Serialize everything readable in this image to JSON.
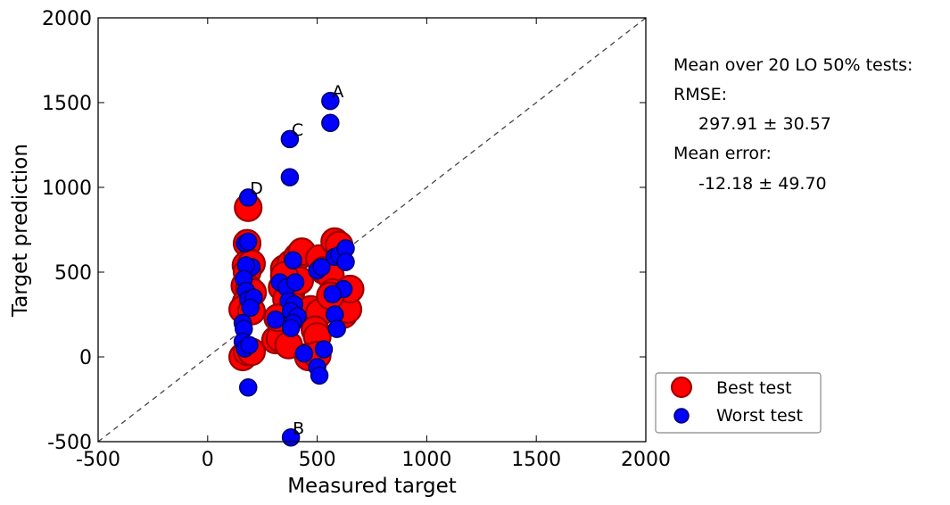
{
  "chart_data": {
    "type": "scatter",
    "xlabel": "Measured target",
    "ylabel": "Target prediction",
    "xlim": [
      -500,
      2000
    ],
    "ylim": [
      -500,
      2000
    ],
    "xticks": [
      -500,
      0,
      500,
      1000,
      1500,
      2000
    ],
    "yticks": [
      -500,
      0,
      500,
      1000,
      1500,
      2000
    ],
    "xtick_labels": [
      "-500",
      "0",
      "500",
      "1000",
      "1500",
      "2000"
    ],
    "ytick_labels": [
      "-500",
      "0",
      "500",
      "1000",
      "1500",
      "2000"
    ],
    "reference_line": "y = x (dashed)",
    "grid": false,
    "legend_position": "lower-right outside",
    "series": [
      {
        "name": "Best test",
        "color": "#ff0000",
        "edge_color": "#990000",
        "marker": "large circle",
        "points": [
          [
            185,
            880
          ],
          [
            180,
            670
          ],
          [
            190,
            560
          ],
          [
            175,
            540
          ],
          [
            200,
            550
          ],
          [
            180,
            500
          ],
          [
            170,
            420
          ],
          [
            190,
            400
          ],
          [
            205,
            380
          ],
          [
            175,
            320
          ],
          [
            160,
            280
          ],
          [
            200,
            270
          ],
          [
            160,
            0
          ],
          [
            180,
            30
          ],
          [
            200,
            30
          ],
          [
            310,
            100
          ],
          [
            330,
            110
          ],
          [
            370,
            70
          ],
          [
            340,
            410
          ],
          [
            380,
            380
          ],
          [
            350,
            520
          ],
          [
            380,
            550
          ],
          [
            410,
            590
          ],
          [
            430,
            620
          ],
          [
            360,
            340
          ],
          [
            390,
            300
          ],
          [
            470,
            280
          ],
          [
            510,
            260
          ],
          [
            490,
            160
          ],
          [
            500,
            120
          ],
          [
            460,
            0
          ],
          [
            500,
            10
          ],
          [
            510,
            580
          ],
          [
            530,
            510
          ],
          [
            560,
            480
          ],
          [
            580,
            680
          ],
          [
            600,
            660
          ],
          [
            570,
            380
          ],
          [
            620,
            250
          ],
          [
            640,
            280
          ],
          [
            650,
            400
          ],
          [
            320,
            230
          ],
          [
            560,
            360
          ],
          [
            420,
            450
          ],
          [
            350,
            480
          ]
        ]
      },
      {
        "name": "Worst test",
        "color": "#0000ff",
        "edge_color": "#000066",
        "marker": "small circle",
        "points": [
          [
            560,
            1510
          ],
          [
            560,
            1380
          ],
          [
            375,
            1285
          ],
          [
            375,
            1060
          ],
          [
            185,
            940
          ],
          [
            170,
            670
          ],
          [
            185,
            680
          ],
          [
            200,
            530
          ],
          [
            175,
            540
          ],
          [
            165,
            460
          ],
          [
            175,
            390
          ],
          [
            185,
            340
          ],
          [
            210,
            350
          ],
          [
            195,
            290
          ],
          [
            160,
            200
          ],
          [
            165,
            165
          ],
          [
            160,
            90
          ],
          [
            170,
            50
          ],
          [
            190,
            70
          ],
          [
            185,
            -180
          ],
          [
            380,
            -475
          ],
          [
            330,
            440
          ],
          [
            360,
            410
          ],
          [
            400,
            440
          ],
          [
            390,
            570
          ],
          [
            370,
            330
          ],
          [
            395,
            310
          ],
          [
            380,
            270
          ],
          [
            410,
            240
          ],
          [
            390,
            200
          ],
          [
            380,
            170
          ],
          [
            310,
            220
          ],
          [
            440,
            20
          ],
          [
            500,
            -60
          ],
          [
            510,
            -110
          ],
          [
            530,
            45
          ],
          [
            500,
            510
          ],
          [
            520,
            530
          ],
          [
            580,
            590
          ],
          [
            600,
            600
          ],
          [
            630,
            640
          ],
          [
            630,
            560
          ],
          [
            620,
            400
          ],
          [
            580,
            250
          ],
          [
            590,
            165
          ],
          [
            570,
            370
          ]
        ]
      }
    ],
    "annotations": [
      {
        "text": "A",
        "x": 560,
        "y": 1510
      },
      {
        "text": "B",
        "x": 380,
        "y": -475
      },
      {
        "text": "C",
        "x": 375,
        "y": 1285
      },
      {
        "text": "D",
        "x": 185,
        "y": 940
      }
    ]
  },
  "stats": {
    "header": "Mean over 20 LO 50% tests:",
    "rmse_label": "RMSE:",
    "rmse_value": "297.91 ± 30.57",
    "mean_error_label": "Mean error:",
    "mean_error_value": "-12.18 ± 49.70"
  },
  "legend": {
    "best_label": "Best test",
    "worst_label": "Worst test"
  }
}
